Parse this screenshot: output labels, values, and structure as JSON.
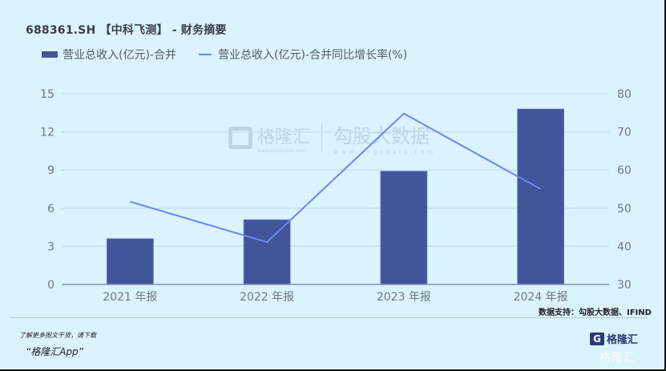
{
  "header": {
    "title": "688361.SH 【中科飞测】 - 财务摘要"
  },
  "legend": [
    {
      "label": "营业总收入(亿元)-合并",
      "type": "bar",
      "color": "#42559a"
    },
    {
      "label": "营业总收入(亿元)-合并同比增长率(%)",
      "type": "line",
      "color": "#6c86f5"
    }
  ],
  "watermark": {
    "brand": "格隆汇",
    "brand_url": "www.gelonghui.com",
    "data_brand": "勾股大数据",
    "data_url": "www.gogudata.com"
  },
  "footer": {
    "source": "数据支持：勾股大数据、IFIND",
    "promo_line1": "了解更多图文干货，请下载",
    "promo_line2": "“格隆汇App”",
    "logo_text": "格隆汇",
    "logo_glyph": "G"
  },
  "chart_data": {
    "type": "bar",
    "title": "688361.SH 【中科飞测】 - 财务摘要",
    "categories": [
      "2021 年报",
      "2022 年报",
      "2023 年报",
      "2024 年报"
    ],
    "series": [
      {
        "name": "营业总收入(亿元)-合并",
        "type": "bar",
        "axis": "left",
        "values": [
          3.6,
          5.09,
          8.91,
          13.8
        ]
      },
      {
        "name": "营业总收入(亿元)-合并同比增长率(%)",
        "type": "line",
        "axis": "right",
        "values": [
          51.7,
          41.1,
          74.8,
          55.0
        ]
      }
    ],
    "y_left": {
      "ticks": [
        0,
        3,
        6,
        9,
        12,
        15
      ],
      "ylim": [
        0,
        15
      ]
    },
    "y_right": {
      "ticks": [
        30,
        40,
        50,
        60,
        70,
        80
      ],
      "ylim": [
        30,
        80
      ]
    },
    "xlabel": "",
    "ylabel": "",
    "grid": true,
    "legend_position": "top-left"
  }
}
